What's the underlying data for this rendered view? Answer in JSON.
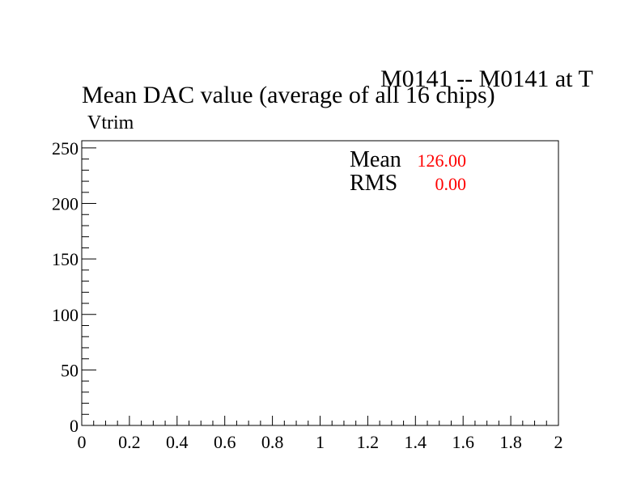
{
  "chart_data": {
    "type": "histogram",
    "header": "M0141 -- M0141 at T",
    "title": "Mean DAC value (average of all 16 chips)",
    "ylabel": "Vtrim",
    "xlim": [
      0,
      2
    ],
    "xticks": [
      0,
      0.2,
      0.4,
      0.6,
      0.8,
      1,
      1.2,
      1.4,
      1.6,
      1.8,
      2
    ],
    "ylim": [
      0,
      256.5
    ],
    "yticks": [
      0,
      50,
      100,
      150,
      200,
      250
    ],
    "stats": [
      {
        "name": "Mean",
        "value": "126.00"
      },
      {
        "name": "RMS",
        "value": "0.00"
      }
    ],
    "stats_color": "#ff0000"
  }
}
